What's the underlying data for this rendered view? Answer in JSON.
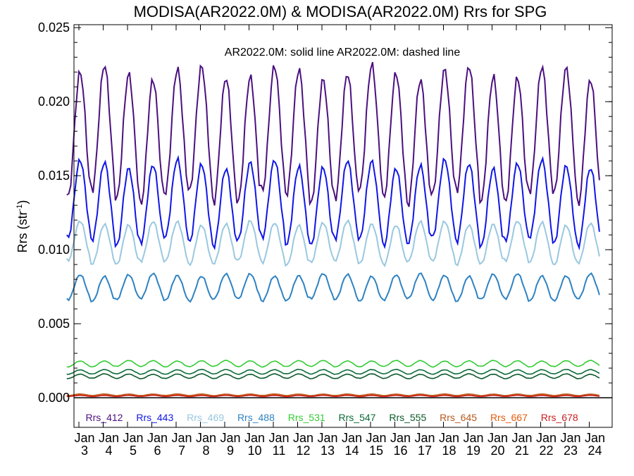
{
  "chart_data": {
    "type": "line",
    "title": "MODISA(AR2022.0M) & MODISA(AR2022.0M)  Rrs for SPG",
    "ylabel_main": "Rrs (str",
    "ylabel_sup": "-1",
    "ylabel_close": ")",
    "annotation": "AR2022.0M: solid line   AR2022.0M: dashed line",
    "ylim": [
      -0.002,
      0.0252
    ],
    "yticks": [
      "0.000",
      "0.005",
      "0.010",
      "0.015",
      "0.020",
      "0.025"
    ],
    "ytick_values": [
      0.0,
      0.005,
      0.01,
      0.015,
      0.02,
      0.025
    ],
    "x_start_year": 2003,
    "x_end_year": 2025,
    "xtick_month": "Jan",
    "xtick_years": [
      "3",
      "4",
      "5",
      "6",
      "7",
      "8",
      "9",
      "10",
      "11",
      "12",
      "13",
      "14",
      "15",
      "16",
      "17",
      "18",
      "19",
      "20",
      "21",
      "22",
      "23",
      "24"
    ],
    "grid": false,
    "legend_placement": "bottom",
    "series": [
      {
        "name": "Rrs_412",
        "color": "#4b1080",
        "min": 0.0135,
        "max": 0.022
      },
      {
        "name": "Rrs_443",
        "color": "#1016e6",
        "min": 0.0105,
        "max": 0.0158
      },
      {
        "name": "Rrs_469",
        "color": "#99c8e0",
        "min": 0.0091,
        "max": 0.0118
      },
      {
        "name": "Rrs_488",
        "color": "#2e82c2",
        "min": 0.0066,
        "max": 0.0083
      },
      {
        "name": "Rrs_531",
        "color": "#33cc33",
        "min": 0.0021,
        "max": 0.0025
      },
      {
        "name": "Rrs_547",
        "color": "#0a6b36",
        "min": 0.0016,
        "max": 0.0019
      },
      {
        "name": "Rrs_555",
        "color": "#0b5a2a",
        "min": 0.0013,
        "max": 0.0016
      },
      {
        "name": "Rrs_645",
        "color": "#b5591e",
        "min": 0.00015,
        "max": 0.00025
      },
      {
        "name": "Rrs_667",
        "color": "#e65c0a",
        "min": 0.0001,
        "max": 0.00018
      },
      {
        "name": "Rrs_678",
        "color": "#c81e1e",
        "min": 8e-05,
        "max": 0.00016
      }
    ]
  }
}
